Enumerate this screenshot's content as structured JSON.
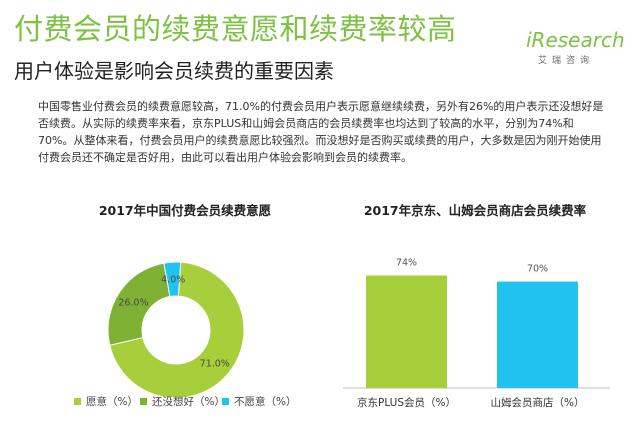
{
  "header": {
    "title": "付费会员的续费意愿和续费率较高",
    "subtitle": "用户体验是影响会员续费的重要因素"
  },
  "logo": {
    "text": "iResearch",
    "subtext": "艾瑞咨询"
  },
  "body_text": "中国零售业付费会员的续费意愿较高，71.0%的付费会员用户表示愿意继续续费，另外有26%的用户表示还没想好是否续费。从实际的续费率来看，京东PLUS和山姆会员商店的会员续费率也均达到了较高的水平，分别为74%和70%。从整体来看，付费会员用户的续费意愿比较强烈。而没想好是否购买或续费的用户，大多数是因为刚开始使用付费会员还不确定是否好用，由此可以看出用户体验会影响到会员的续费率。",
  "colors": {
    "accent": "#7cc243",
    "green": "#a6cf3b",
    "cyan": "#1fc3ee",
    "text": "#333333"
  },
  "chart_data": [
    {
      "type": "pie",
      "title": "2017年中国付费会员续费意愿",
      "categories": [
        "愿意（%）",
        "还没想好（%）",
        "不愿意（%）"
      ],
      "values": [
        71.0,
        26.0,
        4.0
      ],
      "data_labels": [
        "71.0%",
        "26.0%",
        "4.0%"
      ],
      "colors": [
        "#a6cf3b",
        "#7fb135",
        "#1fc3ee"
      ],
      "donut": true,
      "legend": "bottom"
    },
    {
      "type": "bar",
      "title": "2017年京东、山姆会员商店会员续费率",
      "categories": [
        "京东PLUS会员（%）",
        "山姆会员商店（%）"
      ],
      "values": [
        74,
        70
      ],
      "data_labels": [
        "74%",
        "70%"
      ],
      "colors": [
        "#a6cf3b",
        "#1fc3ee"
      ],
      "ylim": [
        0,
        100
      ]
    }
  ]
}
